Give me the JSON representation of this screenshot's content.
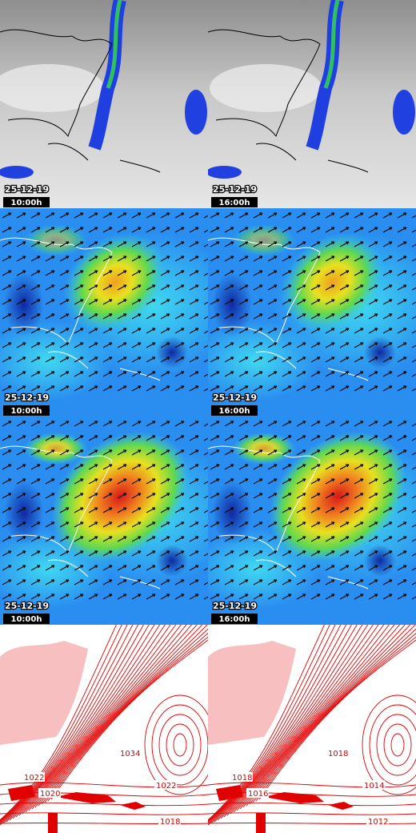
{
  "panels": [
    {
      "date": "25-12-19",
      "time": "10:00h"
    },
    {
      "date": "25-12-19",
      "time": "16:00h"
    },
    {
      "date": "25-12-19",
      "time": "10:00h"
    },
    {
      "date": "25-12-19",
      "time": "16:00h"
    },
    {
      "date": "25-12-19",
      "time": "10:00h"
    },
    {
      "date": "25-12-19",
      "time": "16:00h"
    },
    {
      "isobar_labels": [
        "1034",
        "1022",
        "1020",
        "1022",
        "1018"
      ]
    },
    {
      "isobar_labels": [
        "1018",
        "1018",
        "1016",
        "1014",
        "1012"
      ]
    }
  ]
}
